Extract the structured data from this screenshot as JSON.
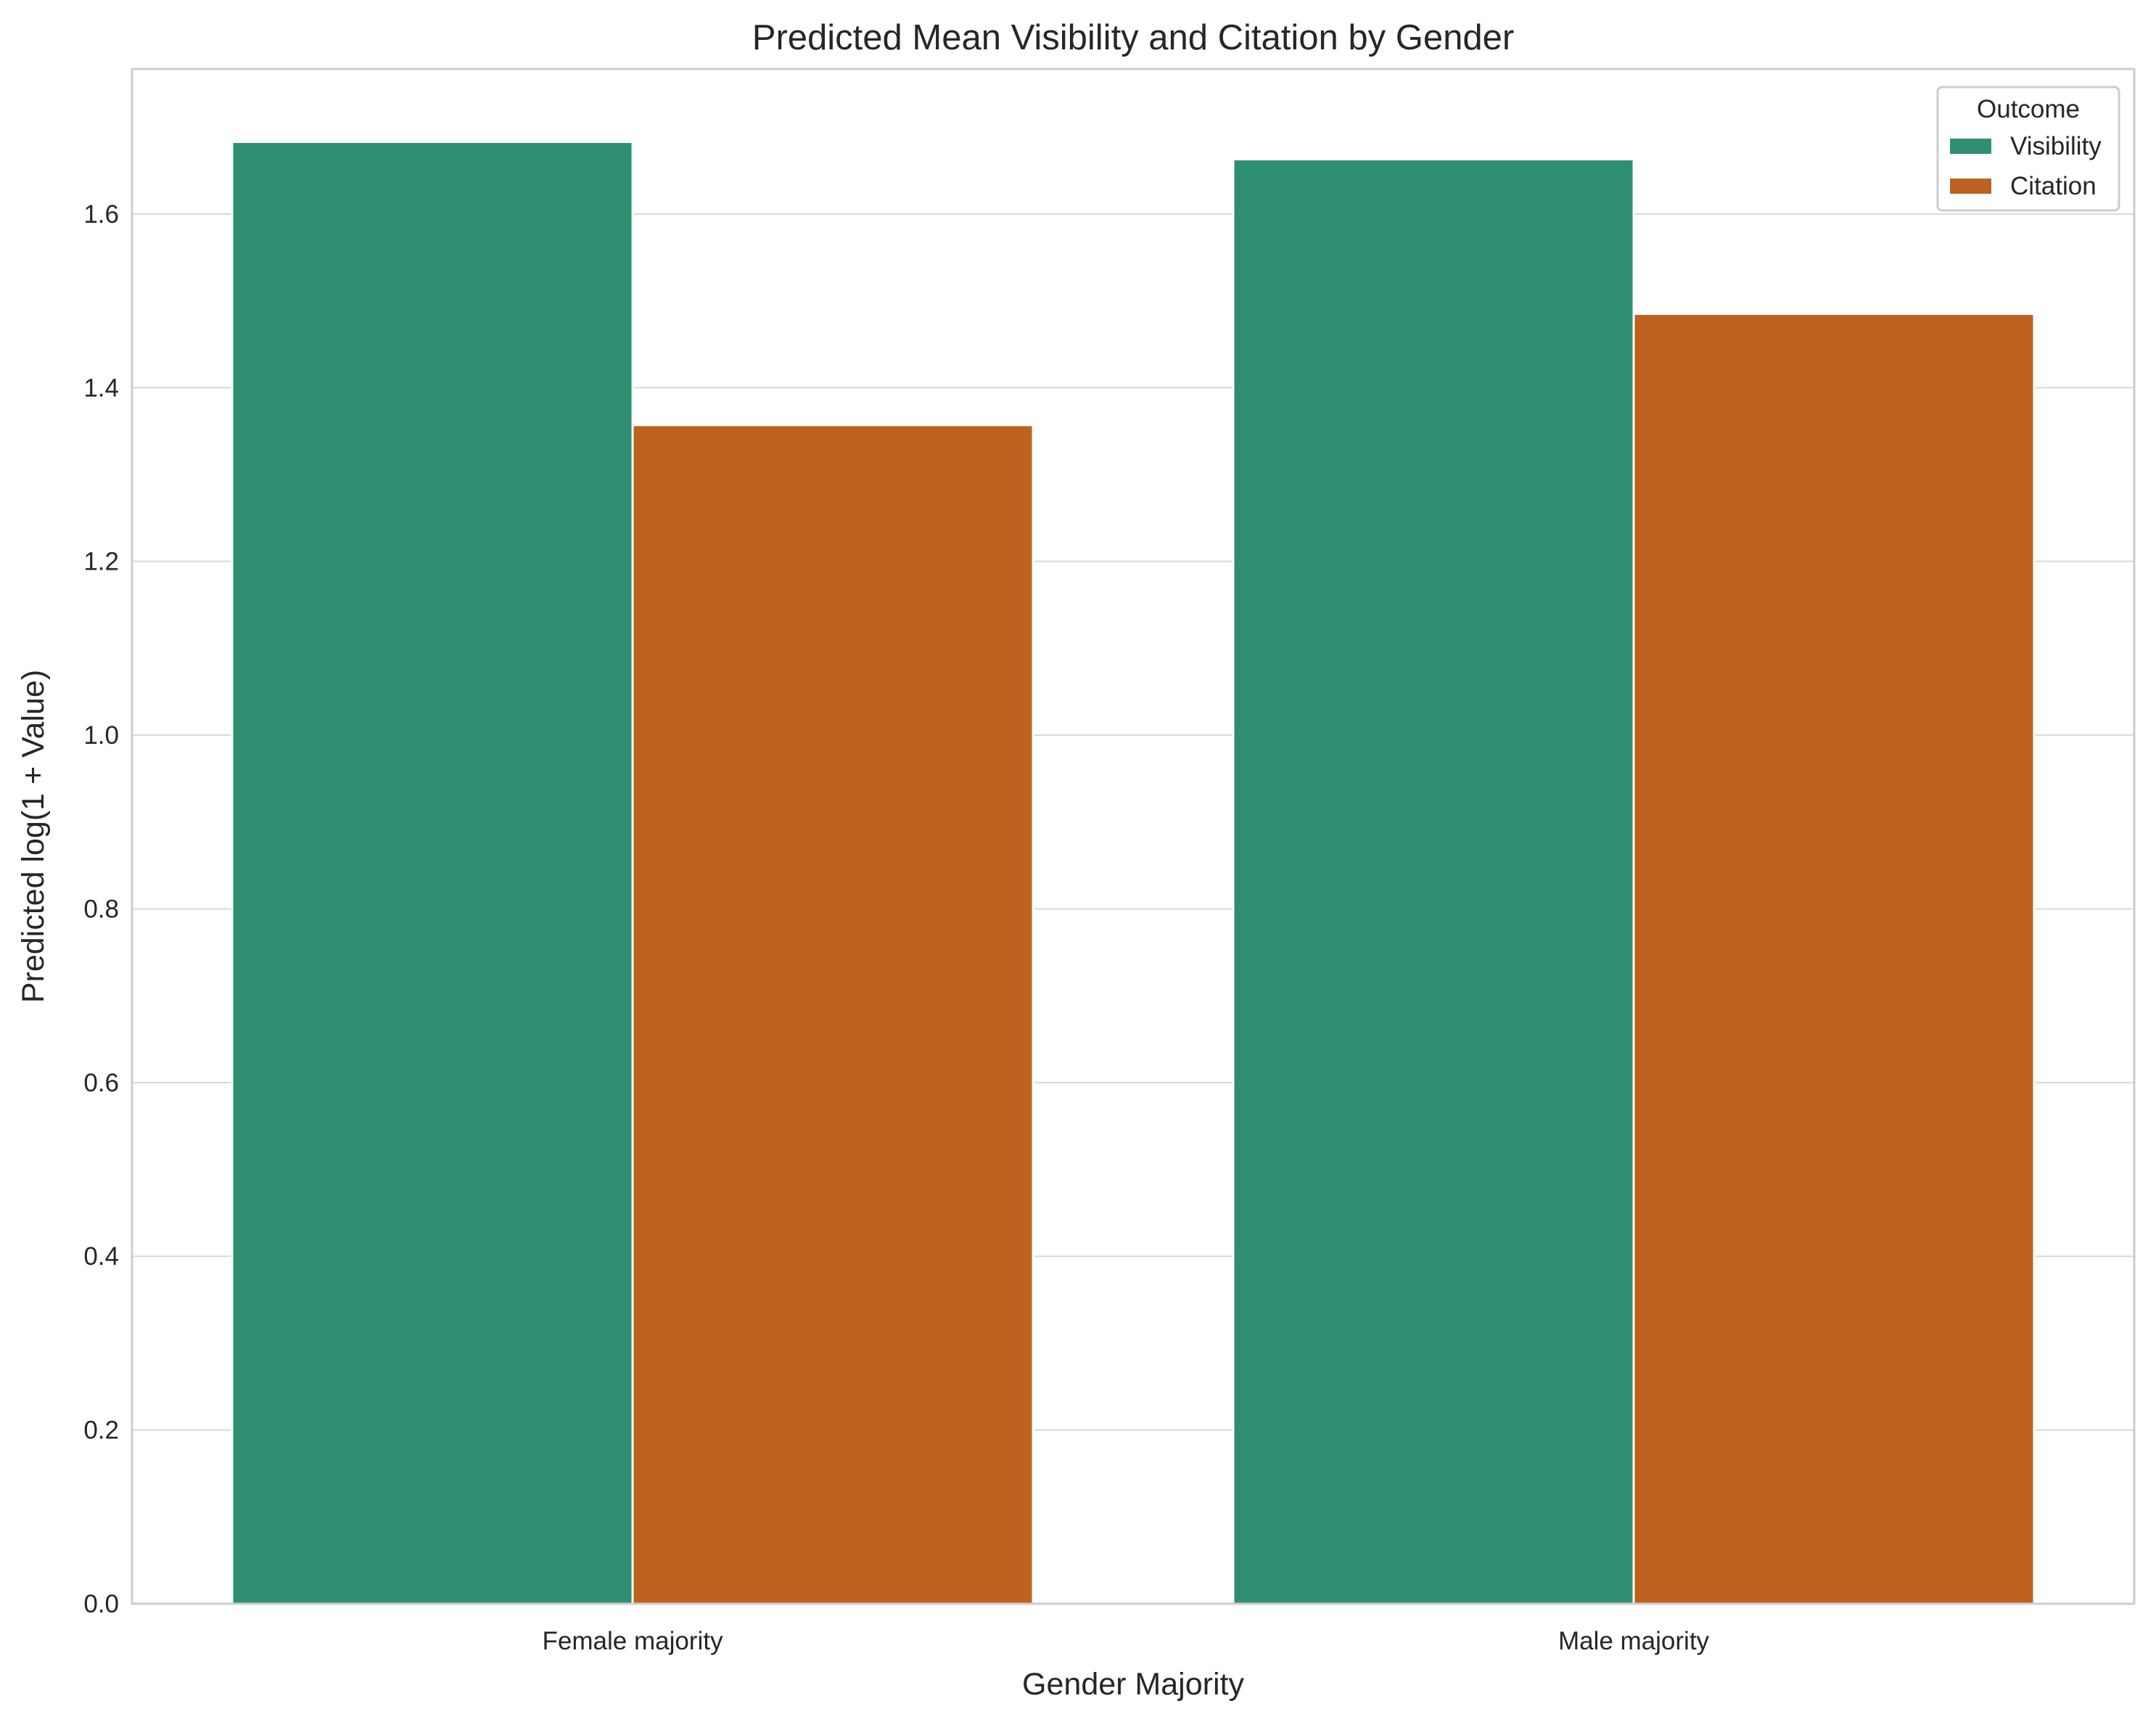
{
  "chart_data": {
    "type": "bar",
    "title": "Predicted Mean Visibility and Citation by Gender",
    "xlabel": "Gender Majority",
    "ylabel": "Predicted log(1 + Value)",
    "categories": [
      "Female majority",
      "Male majority"
    ],
    "series": [
      {
        "name": "Visibility",
        "values": [
          1.683,
          1.663
        ],
        "color": "#2e8f73"
      },
      {
        "name": "Citation",
        "values": [
          1.357,
          1.485
        ],
        "color": "#bd621f"
      }
    ],
    "ylim": [
      0,
      1.767
    ],
    "yticks": [
      "0.0",
      "0.2",
      "0.4",
      "0.6",
      "0.8",
      "1.0",
      "1.2",
      "1.4",
      "1.6"
    ],
    "grid": "horizontal",
    "legend": {
      "title": "Outcome",
      "placement": "top-right"
    }
  }
}
